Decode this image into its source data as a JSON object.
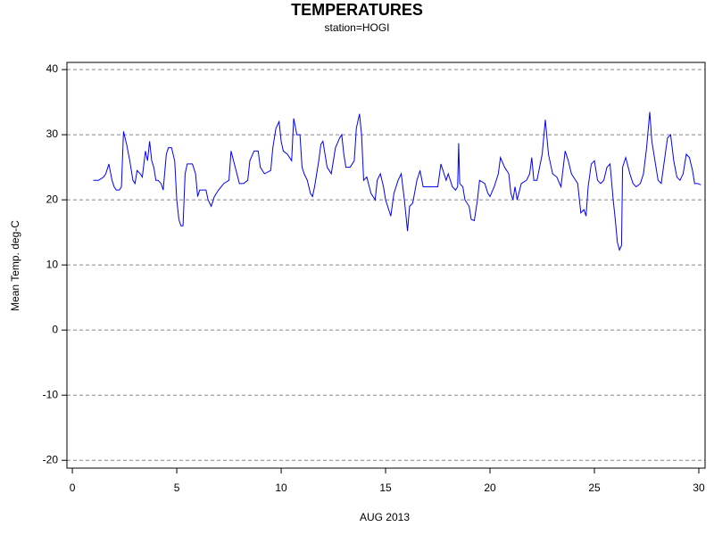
{
  "chart_data": {
    "type": "line",
    "title": "TEMPERATURES",
    "subtitle": "station=HOGI",
    "xlabel": "AUG 2013",
    "ylabel": "Mean Temp. deg-C",
    "color": "#0000ff",
    "x": [
      1.0,
      1.25,
      1.5,
      1.6,
      1.75,
      1.9,
      2.0,
      2.1,
      2.25,
      2.35,
      2.45,
      2.6,
      2.75,
      2.9,
      3.0,
      3.1,
      3.25,
      3.35,
      3.5,
      3.6,
      3.7,
      3.8,
      3.9,
      4.0,
      4.1,
      4.25,
      4.35,
      4.5,
      4.6,
      4.75,
      4.9,
      5.0,
      5.1,
      5.2,
      5.3,
      5.4,
      5.5,
      5.75,
      5.9,
      6.0,
      6.1,
      6.25,
      6.4,
      6.5,
      6.65,
      6.8,
      7.0,
      7.25,
      7.5,
      7.6,
      7.8,
      8.0,
      8.2,
      8.4,
      8.5,
      8.7,
      8.9,
      9.0,
      9.2,
      9.5,
      9.6,
      9.75,
      9.9,
      10.0,
      10.1,
      10.3,
      10.5,
      10.6,
      10.75,
      10.9,
      11.0,
      11.1,
      11.25,
      11.4,
      11.5,
      11.6,
      11.8,
      11.9,
      12.0,
      12.2,
      12.4,
      12.6,
      12.8,
      12.9,
      13.0,
      13.1,
      13.3,
      13.5,
      13.6,
      13.75,
      13.85,
      13.95,
      14.1,
      14.3,
      14.5,
      14.6,
      14.75,
      14.9,
      15.0,
      15.1,
      15.25,
      15.4,
      15.6,
      15.75,
      15.9,
      16.05,
      16.15,
      16.3,
      16.5,
      16.65,
      16.8,
      17.0,
      17.25,
      17.5,
      17.65,
      17.8,
      17.9,
      18.0,
      18.2,
      18.35,
      18.45,
      18.5,
      18.55,
      18.7,
      18.8,
      19.0,
      19.1,
      19.25,
      19.4,
      19.5,
      19.75,
      19.9,
      20.0,
      20.2,
      20.4,
      20.5,
      20.7,
      20.9,
      21.0,
      21.1,
      21.2,
      21.3,
      21.5,
      21.75,
      21.9,
      22.0,
      22.1,
      22.25,
      22.5,
      22.65,
      22.8,
      23.0,
      23.2,
      23.4,
      23.6,
      23.75,
      23.9,
      24.0,
      24.2,
      24.35,
      24.5,
      24.6,
      24.7,
      24.85,
      25.0,
      25.15,
      25.3,
      25.45,
      25.6,
      25.75,
      25.9,
      26.0,
      26.1,
      26.2,
      26.3,
      26.35,
      26.5,
      26.7,
      26.85,
      27.0,
      27.2,
      27.35,
      27.5,
      27.65,
      27.75,
      27.9,
      28.05,
      28.2,
      28.35,
      28.5,
      28.65,
      28.8,
      28.95,
      29.1,
      29.25,
      29.4,
      29.55,
      29.7,
      29.8,
      29.95,
      30.1
    ],
    "values": [
      23,
      23,
      23.5,
      24,
      25.5,
      23,
      22,
      21.5,
      21.5,
      22,
      30.5,
      28.5,
      26,
      23,
      22.5,
      24.5,
      24,
      23.5,
      27.5,
      26,
      29,
      26,
      25,
      23,
      23,
      22.5,
      21.5,
      27,
      28,
      28,
      26,
      20,
      17,
      16,
      16,
      24,
      25.5,
      25.5,
      24,
      20.5,
      21.5,
      21.5,
      21.5,
      20,
      19,
      20.5,
      21.5,
      22.5,
      23,
      27.5,
      25,
      22.5,
      22.5,
      23,
      26,
      27.5,
      27.5,
      25,
      24,
      24.5,
      28,
      31,
      32,
      29,
      27.5,
      27,
      26,
      32.5,
      30,
      30,
      25,
      24,
      23,
      21,
      20.5,
      22,
      26,
      28.5,
      29,
      25,
      24,
      28,
      29.5,
      30,
      27,
      25,
      25,
      26,
      31,
      33.2,
      30,
      23,
      23.5,
      21,
      20,
      23,
      24,
      22,
      20,
      19,
      17.5,
      21,
      23,
      24,
      20,
      15.2,
      19,
      19.5,
      23,
      24.5,
      22,
      22,
      22,
      22,
      25.5,
      24,
      23,
      24,
      22,
      21.5,
      22,
      28.7,
      22.5,
      22,
      20,
      19,
      17,
      16.8,
      20,
      23,
      22.5,
      21,
      20.5,
      22,
      24,
      26.5,
      25,
      24,
      21,
      20,
      22,
      20,
      22.5,
      23,
      24,
      26.5,
      23,
      23,
      27,
      32.3,
      27,
      24,
      23.5,
      22,
      27.5,
      26,
      24,
      23.5,
      22.5,
      18,
      18.5,
      17.5,
      22,
      25.5,
      26,
      23,
      22.5,
      23,
      25,
      25.5,
      20,
      17,
      13.5,
      12.3,
      13,
      25,
      26.5,
      24,
      22.5,
      22,
      22.5,
      24,
      28,
      33.5,
      29,
      26,
      23,
      22.5,
      26,
      29.5,
      30,
      26,
      23.5,
      23,
      24,
      27,
      26.5,
      24.5,
      22.5,
      22.5,
      22.3
    ],
    "xlim": [
      -0.26,
      30.3
    ],
    "xticks": [
      0,
      5,
      10,
      15,
      20,
      25,
      30
    ],
    "ylim": [
      -21.2,
      41.1
    ],
    "yticks": [
      -20,
      -10,
      0,
      10,
      20,
      30,
      40
    ],
    "grid": true
  }
}
